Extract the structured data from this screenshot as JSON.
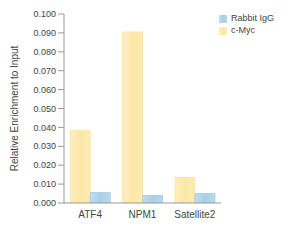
{
  "chart_data": {
    "type": "bar",
    "y_label": "Relative Enrichment to Input",
    "categories": [
      "ATF4",
      "NPM1",
      "Satellite2"
    ],
    "series": [
      {
        "name": "c-Myc",
        "color": "#fce7a4",
        "values": [
          0.0385,
          0.0905,
          0.0135
        ]
      },
      {
        "name": "Rabbit IgG",
        "color": "#a9cfe8",
        "values": [
          0.0055,
          0.004,
          0.005
        ]
      }
    ],
    "ylim": [
      0,
      0.1
    ],
    "yticks": [
      {
        "value": 0,
        "label": "0.000"
      },
      {
        "value": 0.01,
        "label": "0.010"
      },
      {
        "value": 0.02,
        "label": "0.020"
      },
      {
        "value": 0.03,
        "label": "0.030"
      },
      {
        "value": 0.04,
        "label": "0.040"
      },
      {
        "value": 0.05,
        "label": "0.050"
      },
      {
        "value": 0.06,
        "label": "0.060"
      },
      {
        "value": 0.07,
        "label": "0.070"
      },
      {
        "value": 0.08,
        "label": "0.080"
      },
      {
        "value": 0.09,
        "label": "0.090"
      },
      {
        "value": 0.1,
        "label": "0.100"
      }
    ],
    "grid": false,
    "legend": "top-right"
  }
}
